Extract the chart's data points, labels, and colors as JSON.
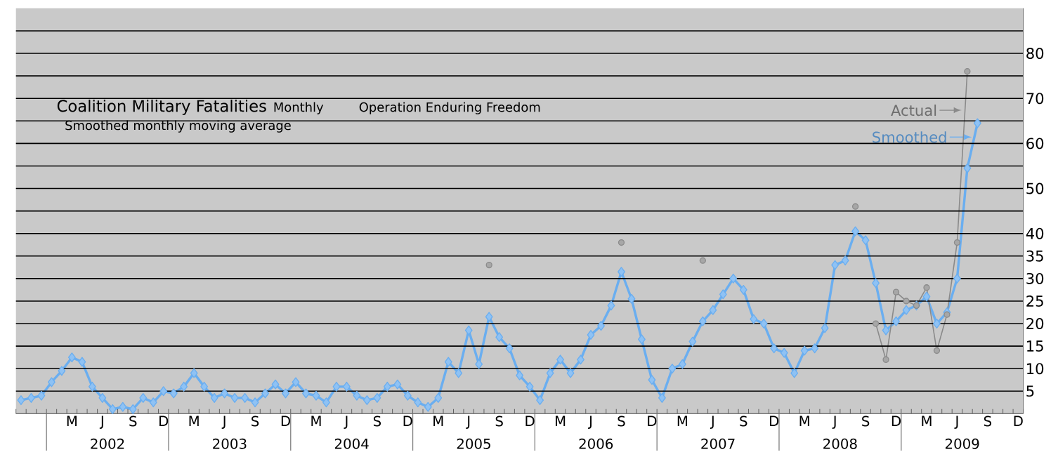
{
  "chart_data": {
    "type": "line",
    "title": "Coalition Military Fatalities",
    "subtitle": "Smoothed monthly moving average",
    "annotations": [
      "Monthly",
      "Operation Enduring Freedom",
      "2002",
      "2003",
      "2004",
      "2005",
      "2006",
      "2007",
      "2008",
      "2009"
    ],
    "categories": [
      null,
      null,
      null,
      null,
      null,
      "M",
      null,
      null,
      "J",
      null,
      null,
      "S",
      null,
      null,
      "D",
      null,
      null,
      "M",
      null,
      null,
      "J",
      null,
      null,
      "S",
      null,
      null,
      "D",
      null,
      null,
      "M",
      null,
      null,
      "J",
      null,
      null,
      "S",
      null,
      null,
      "D",
      null,
      null,
      "M",
      null,
      null,
      "J",
      null,
      null,
      "S",
      null,
      null,
      "D",
      null,
      null,
      "M",
      null,
      null,
      "J",
      null,
      null,
      "S",
      null,
      null,
      "D",
      null,
      null,
      "M",
      null,
      null,
      "J",
      null,
      null,
      "S",
      null,
      null,
      "D",
      null,
      null,
      "M",
      null,
      null,
      "J",
      null,
      null,
      "S",
      null,
      null,
      "D",
      null,
      null,
      "M",
      null,
      null,
      "J",
      null,
      null,
      "S",
      null,
      null,
      "D"
    ],
    "series": [
      {
        "name": "Smoothed",
        "color": "#6aaef0",
        "marker": "diamond",
        "values": [
          3,
          3.5,
          4,
          7,
          9.5,
          12.5,
          11.5,
          6,
          3.5,
          1,
          1.5,
          1,
          3.5,
          2.5,
          5,
          4.5,
          6,
          9,
          6,
          3.5,
          4.5,
          3.5,
          3.5,
          2.5,
          4.5,
          6.5,
          4.5,
          7,
          4.5,
          4,
          2.5,
          6,
          6,
          4,
          3,
          3.5,
          6,
          6.5,
          4,
          2.5,
          1.5,
          3.5,
          11.5,
          9,
          18.5,
          11,
          21.5,
          17,
          14.5,
          8.5,
          6,
          3,
          9,
          12,
          9,
          12,
          17.5,
          19.5,
          24,
          31.5,
          25.5,
          16.5,
          7.5,
          3.5,
          10,
          11,
          16,
          20.5,
          23,
          26.5,
          30,
          27.5,
          21,
          20,
          14.5,
          13.5,
          9,
          14,
          14.5,
          19,
          33,
          34,
          40.5,
          38.5,
          29,
          18.5,
          20.5,
          23,
          24,
          26,
          20,
          22.5,
          30,
          54.5,
          64.5,
          null,
          null,
          null,
          null
        ]
      },
      {
        "name": "Actual",
        "color": "#8a8a8a",
        "marker": "circle",
        "values": [
          null,
          null,
          null,
          null,
          null,
          null,
          null,
          null,
          null,
          null,
          null,
          null,
          null,
          null,
          null,
          null,
          null,
          null,
          null,
          null,
          null,
          null,
          null,
          null,
          null,
          null,
          null,
          null,
          null,
          null,
          null,
          null,
          null,
          null,
          null,
          null,
          null,
          null,
          null,
          null,
          null,
          null,
          null,
          null,
          null,
          null,
          33,
          null,
          null,
          null,
          null,
          null,
          null,
          null,
          null,
          null,
          null,
          null,
          null,
          38,
          null,
          null,
          null,
          null,
          null,
          null,
          null,
          34,
          null,
          null,
          null,
          null,
          null,
          null,
          null,
          null,
          null,
          null,
          null,
          null,
          null,
          null,
          46,
          null,
          20,
          12,
          27,
          25,
          24,
          28,
          14,
          22,
          38,
          76,
          null,
          null,
          null,
          null,
          null
        ]
      }
    ],
    "ylim": [
      0,
      90
    ],
    "yticks": [
      5,
      10,
      15,
      20,
      25,
      30,
      35,
      40,
      {
        "value": 45,
        "label": null
      },
      50,
      {
        "value": 55,
        "label": null
      },
      60,
      {
        "value": 65,
        "label": null
      },
      70,
      {
        "value": 75,
        "label": null
      },
      80,
      {
        "value": 85,
        "label": null
      }
    ],
    "grid": "y",
    "legend": "top right"
  }
}
